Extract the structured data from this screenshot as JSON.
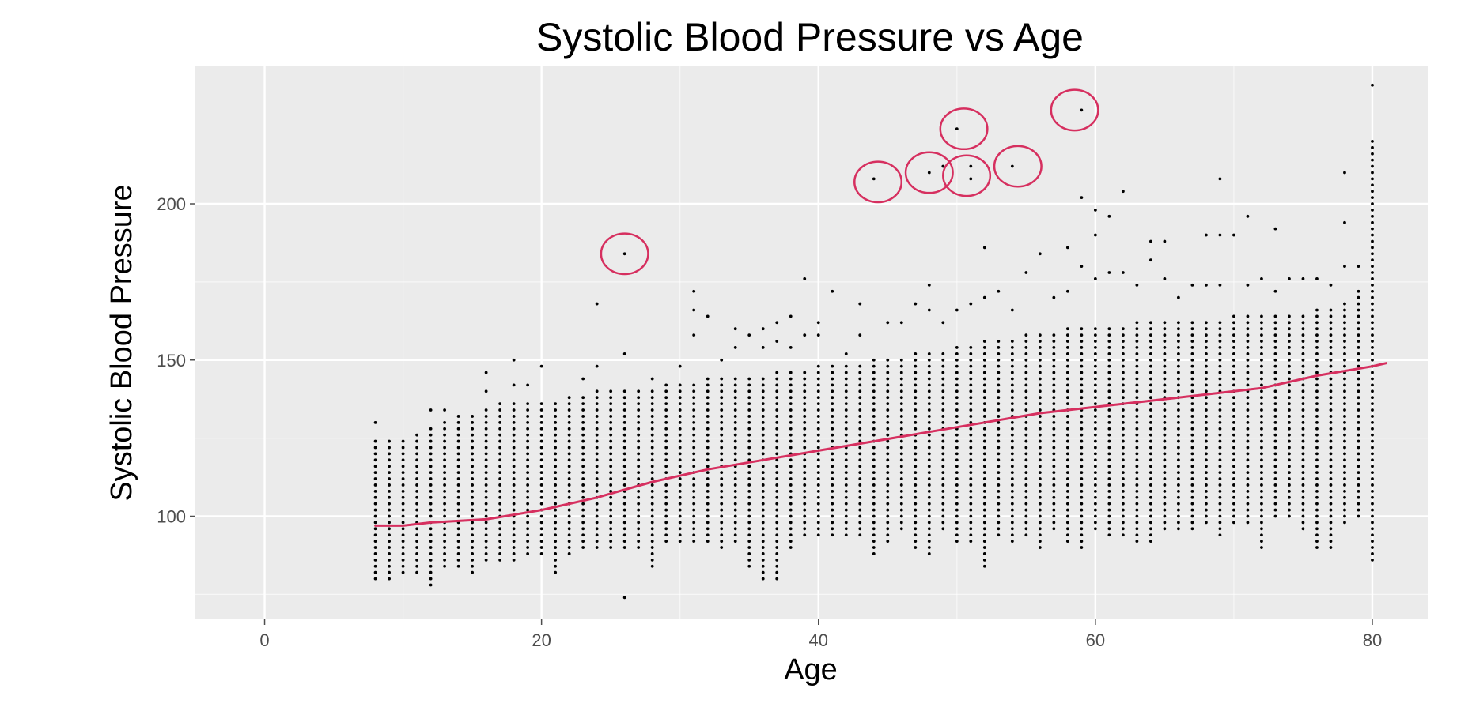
{
  "chart_data": {
    "type": "scatter",
    "title": "Systolic Blood Pressure vs Age",
    "xlabel": "Age",
    "ylabel": "Systolic Blood Pressure",
    "xlim": [
      -5,
      84
    ],
    "ylim": [
      67,
      244
    ],
    "x_ticks": [
      0,
      20,
      40,
      60,
      80
    ],
    "y_ticks": [
      100,
      150,
      200
    ],
    "grid": true,
    "background": "#ebebeb",
    "grid_color": "#ffffff",
    "point_color": "#000000",
    "trend_color": "#d62f5f",
    "annotation_color": "#d62f5f",
    "scatter": {
      "age_range": [
        8,
        80
      ],
      "bp_step": 2,
      "columns": [
        {
          "x": 8,
          "min": 80,
          "max": 124,
          "extras": [
            130
          ]
        },
        {
          "x": 9,
          "min": 80,
          "max": 124,
          "extras": []
        },
        {
          "x": 10,
          "min": 82,
          "max": 124,
          "extras": []
        },
        {
          "x": 11,
          "min": 82,
          "max": 126,
          "extras": []
        },
        {
          "x": 12,
          "min": 78,
          "max": 128,
          "extras": [
            134
          ]
        },
        {
          "x": 13,
          "min": 84,
          "max": 130,
          "extras": [
            134
          ]
        },
        {
          "x": 14,
          "min": 84,
          "max": 132,
          "extras": []
        },
        {
          "x": 15,
          "min": 82,
          "max": 132,
          "extras": []
        },
        {
          "x": 16,
          "min": 86,
          "max": 134,
          "extras": [
            140,
            146
          ]
        },
        {
          "x": 17,
          "min": 86,
          "max": 136,
          "extras": []
        },
        {
          "x": 18,
          "min": 86,
          "max": 136,
          "extras": [
            142,
            150
          ]
        },
        {
          "x": 19,
          "min": 88,
          "max": 136,
          "extras": [
            142
          ]
        },
        {
          "x": 20,
          "min": 88,
          "max": 136,
          "extras": [
            148
          ]
        },
        {
          "x": 21,
          "min": 82,
          "max": 136,
          "extras": []
        },
        {
          "x": 22,
          "min": 88,
          "max": 138,
          "extras": []
        },
        {
          "x": 23,
          "min": 90,
          "max": 138,
          "extras": [
            144
          ]
        },
        {
          "x": 24,
          "min": 90,
          "max": 140,
          "extras": [
            148,
            168
          ]
        },
        {
          "x": 25,
          "min": 90,
          "max": 140,
          "extras": []
        },
        {
          "x": 26,
          "min": 90,
          "max": 140,
          "extras": [
            74,
            152,
            184
          ]
        },
        {
          "x": 27,
          "min": 90,
          "max": 140,
          "extras": []
        },
        {
          "x": 28,
          "min": 84,
          "max": 140,
          "extras": [
            144
          ]
        },
        {
          "x": 29,
          "min": 92,
          "max": 142,
          "extras": []
        },
        {
          "x": 30,
          "min": 92,
          "max": 142,
          "extras": [
            148
          ]
        },
        {
          "x": 31,
          "min": 92,
          "max": 142,
          "extras": [
            158,
            166,
            172
          ]
        },
        {
          "x": 32,
          "min": 92,
          "max": 144,
          "extras": [
            164
          ]
        },
        {
          "x": 33,
          "min": 90,
          "max": 144,
          "extras": [
            150
          ]
        },
        {
          "x": 34,
          "min": 92,
          "max": 144,
          "extras": [
            154,
            160
          ]
        },
        {
          "x": 35,
          "min": 84,
          "max": 144,
          "extras": [
            158
          ]
        },
        {
          "x": 36,
          "min": 80,
          "max": 144,
          "extras": [
            154,
            160
          ]
        },
        {
          "x": 37,
          "min": 80,
          "max": 146,
          "extras": [
            156,
            162
          ]
        },
        {
          "x": 38,
          "min": 90,
          "max": 146,
          "extras": [
            154,
            164
          ]
        },
        {
          "x": 39,
          "min": 94,
          "max": 146,
          "extras": [
            158,
            176
          ]
        },
        {
          "x": 40,
          "min": 94,
          "max": 148,
          "extras": [
            158,
            162
          ]
        },
        {
          "x": 41,
          "min": 94,
          "max": 148,
          "extras": [
            172
          ]
        },
        {
          "x": 42,
          "min": 94,
          "max": 148,
          "extras": [
            152
          ]
        },
        {
          "x": 43,
          "min": 94,
          "max": 148,
          "extras": [
            158,
            168
          ]
        },
        {
          "x": 44,
          "min": 88,
          "max": 150,
          "extras": [
            208
          ]
        },
        {
          "x": 45,
          "min": 92,
          "max": 150,
          "extras": [
            162
          ]
        },
        {
          "x": 46,
          "min": 96,
          "max": 150,
          "extras": [
            162
          ]
        },
        {
          "x": 47,
          "min": 90,
          "max": 152,
          "extras": [
            168
          ]
        },
        {
          "x": 48,
          "min": 88,
          "max": 152,
          "extras": [
            166,
            174,
            210
          ]
        },
        {
          "x": 49,
          "min": 96,
          "max": 152,
          "extras": [
            162,
            212
          ]
        },
        {
          "x": 50,
          "min": 92,
          "max": 154,
          "extras": [
            166,
            224
          ]
        },
        {
          "x": 51,
          "min": 92,
          "max": 154,
          "extras": [
            168,
            208,
            212
          ]
        },
        {
          "x": 52,
          "min": 84,
          "max": 156,
          "extras": [
            170,
            186
          ]
        },
        {
          "x": 53,
          "min": 94,
          "max": 156,
          "extras": [
            172
          ]
        },
        {
          "x": 54,
          "min": 92,
          "max": 156,
          "extras": [
            166,
            212
          ]
        },
        {
          "x": 55,
          "min": 94,
          "max": 158,
          "extras": [
            178
          ]
        },
        {
          "x": 56,
          "min": 90,
          "max": 158,
          "extras": [
            184
          ]
        },
        {
          "x": 57,
          "min": 96,
          "max": 158,
          "extras": [
            170
          ]
        },
        {
          "x": 58,
          "min": 92,
          "max": 160,
          "extras": [
            172,
            186
          ]
        },
        {
          "x": 59,
          "min": 90,
          "max": 160,
          "extras": [
            180,
            202,
            230
          ]
        },
        {
          "x": 60,
          "min": 96,
          "max": 160,
          "extras": [
            176,
            190,
            198
          ]
        },
        {
          "x": 61,
          "min": 94,
          "max": 160,
          "extras": [
            178,
            196
          ]
        },
        {
          "x": 62,
          "min": 94,
          "max": 160,
          "extras": [
            178,
            204
          ]
        },
        {
          "x": 63,
          "min": 92,
          "max": 162,
          "extras": [
            174
          ]
        },
        {
          "x": 64,
          "min": 92,
          "max": 162,
          "extras": [
            182,
            188
          ]
        },
        {
          "x": 65,
          "min": 96,
          "max": 162,
          "extras": [
            176,
            188
          ]
        },
        {
          "x": 66,
          "min": 96,
          "max": 162,
          "extras": [
            170
          ]
        },
        {
          "x": 67,
          "min": 96,
          "max": 162,
          "extras": [
            174
          ]
        },
        {
          "x": 68,
          "min": 98,
          "max": 162,
          "extras": [
            174,
            190
          ]
        },
        {
          "x": 69,
          "min": 94,
          "max": 162,
          "extras": [
            174,
            190,
            208
          ]
        },
        {
          "x": 70,
          "min": 98,
          "max": 164,
          "extras": [
            190
          ]
        },
        {
          "x": 71,
          "min": 98,
          "max": 164,
          "extras": [
            174,
            196
          ]
        },
        {
          "x": 72,
          "min": 90,
          "max": 164,
          "extras": [
            176
          ]
        },
        {
          "x": 73,
          "min": 100,
          "max": 164,
          "extras": [
            172,
            192
          ]
        },
        {
          "x": 74,
          "min": 100,
          "max": 164,
          "extras": [
            176
          ]
        },
        {
          "x": 75,
          "min": 96,
          "max": 164,
          "extras": [
            176
          ]
        },
        {
          "x": 76,
          "min": 90,
          "max": 166,
          "extras": [
            176
          ]
        },
        {
          "x": 77,
          "min": 90,
          "max": 166,
          "extras": [
            174
          ]
        },
        {
          "x": 78,
          "min": 98,
          "max": 168,
          "extras": [
            180,
            194,
            210
          ]
        },
        {
          "x": 79,
          "min": 100,
          "max": 172,
          "extras": [
            180
          ]
        },
        {
          "x": 80,
          "min": 86,
          "max": 220,
          "extras": [
            238
          ]
        }
      ]
    },
    "trend_line": {
      "x": [
        8,
        10,
        12,
        16,
        20,
        24,
        28,
        32,
        36,
        40,
        44,
        48,
        52,
        56,
        60,
        64,
        68,
        72,
        76,
        80,
        81
      ],
      "y": [
        97,
        97,
        98,
        99,
        102,
        106,
        111,
        115,
        118,
        121,
        124,
        127,
        130,
        133,
        135,
        137,
        139,
        141,
        145,
        148,
        149
      ]
    },
    "annotations": [
      {
        "shape": "circle",
        "x": 26,
        "y": 184
      },
      {
        "shape": "circle",
        "x": 44.3,
        "y": 207
      },
      {
        "shape": "circle",
        "x": 48,
        "y": 210
      },
      {
        "shape": "circle",
        "x": 50.5,
        "y": 224
      },
      {
        "shape": "circle",
        "x": 50.7,
        "y": 209
      },
      {
        "shape": "circle",
        "x": 54.4,
        "y": 212
      },
      {
        "shape": "circle",
        "x": 58.5,
        "y": 230
      }
    ]
  }
}
